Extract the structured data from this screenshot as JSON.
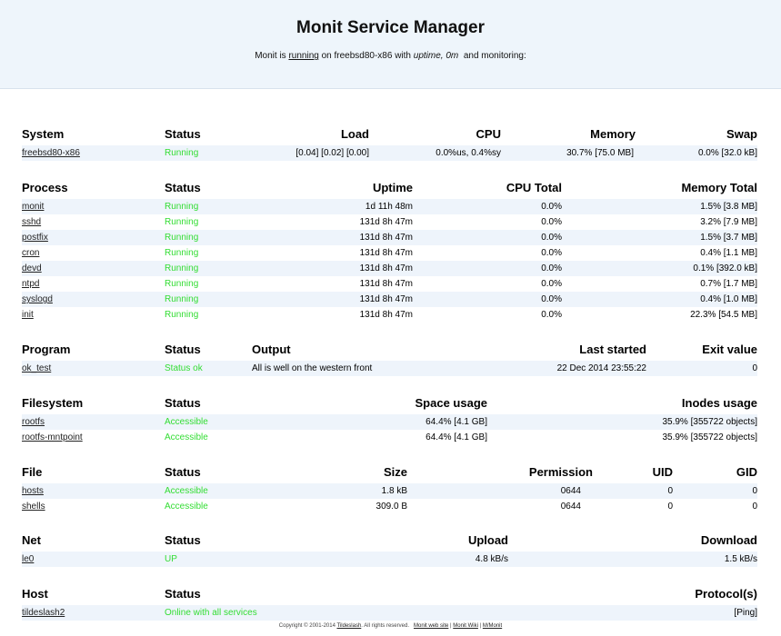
{
  "header": {
    "title": "Monit Service Manager",
    "sub_prefix": "Monit is",
    "sub_running": "running",
    "sub_on": "on freebsd80-x86 with",
    "sub_uptime_label": "uptime,",
    "sub_uptime_value": "0m",
    "sub_suffix": "and monitoring:"
  },
  "system": {
    "headers": [
      "System",
      "Status",
      "Load",
      "CPU",
      "Memory",
      "Swap"
    ],
    "rows": [
      {
        "name": "freebsd80-x86",
        "status": "Running",
        "load": "[0.04] [0.02] [0.00]",
        "cpu": "0.0%us, 0.4%sy",
        "memory": "30.7% [75.0 MB]",
        "swap": "0.0% [32.0 kB]"
      }
    ]
  },
  "process": {
    "headers": [
      "Process",
      "Status",
      "Uptime",
      "CPU Total",
      "Memory Total"
    ],
    "rows": [
      {
        "name": "monit",
        "status": "Running",
        "uptime": "1d 11h 48m",
        "cpu": "0.0%",
        "memory": "1.5% [3.8 MB]"
      },
      {
        "name": "sshd",
        "status": "Running",
        "uptime": "131d 8h 47m",
        "cpu": "0.0%",
        "memory": "3.2% [7.9 MB]"
      },
      {
        "name": "postfix",
        "status": "Running",
        "uptime": "131d 8h 47m",
        "cpu": "0.0%",
        "memory": "1.5% [3.7 MB]"
      },
      {
        "name": "cron",
        "status": "Running",
        "uptime": "131d 8h 47m",
        "cpu": "0.0%",
        "memory": "0.4% [1.1 MB]"
      },
      {
        "name": "devd",
        "status": "Running",
        "uptime": "131d 8h 47m",
        "cpu": "0.0%",
        "memory": "0.1% [392.0 kB]"
      },
      {
        "name": "ntpd",
        "status": "Running",
        "uptime": "131d 8h 47m",
        "cpu": "0.0%",
        "memory": "0.7% [1.7 MB]"
      },
      {
        "name": "syslogd",
        "status": "Running",
        "uptime": "131d 8h 47m",
        "cpu": "0.0%",
        "memory": "0.4% [1.0 MB]"
      },
      {
        "name": "init",
        "status": "Running",
        "uptime": "131d 8h 47m",
        "cpu": "0.0%",
        "memory": "22.3% [54.5 MB]"
      }
    ]
  },
  "program": {
    "headers": [
      "Program",
      "Status",
      "Output",
      "Last started",
      "Exit value"
    ],
    "rows": [
      {
        "name": "ok_test",
        "status": "Status ok",
        "output": "All is well on the western front",
        "last_started": "22 Dec 2014 23:55:22",
        "exit": "0"
      }
    ]
  },
  "filesystem": {
    "headers": [
      "Filesystem",
      "Status",
      "Space usage",
      "Inodes usage"
    ],
    "rows": [
      {
        "name": "rootfs",
        "status": "Accessible",
        "space": "64.4% [4.1 GB]",
        "inodes": "35.9% [355722 objects]"
      },
      {
        "name": "rootfs-mntpoint",
        "status": "Accessible",
        "space": "64.4% [4.1 GB]",
        "inodes": "35.9% [355722 objects]"
      }
    ]
  },
  "file": {
    "headers": [
      "File",
      "Status",
      "Size",
      "Permission",
      "UID",
      "GID"
    ],
    "rows": [
      {
        "name": "hosts",
        "status": "Accessible",
        "size": "1.8 kB",
        "perm": "0644",
        "uid": "0",
        "gid": "0"
      },
      {
        "name": "shells",
        "status": "Accessible",
        "size": "309.0 B",
        "perm": "0644",
        "uid": "0",
        "gid": "0"
      }
    ]
  },
  "net": {
    "headers": [
      "Net",
      "Status",
      "Upload",
      "Download"
    ],
    "rows": [
      {
        "name": "le0",
        "status": "UP",
        "upload": "4.8 kB/s",
        "download": "1.5 kB/s"
      }
    ]
  },
  "host": {
    "headers": [
      "Host",
      "Status",
      "Protocol(s)"
    ],
    "rows": [
      {
        "name": "tildeslash2",
        "status": "Online with all services",
        "protocols": "[Ping]"
      }
    ]
  },
  "footer": {
    "copyright": "Copyright © 2001-2014",
    "company": "Tildeslash",
    "rights": ". All rights reserved.",
    "link1": "Monit web site",
    "link2": "Monit Wiki",
    "link3": "M/Monit",
    "sep": "|"
  },
  "colors": {
    "header_bg": "#eef5fb",
    "row_alt_bg": "#eef4fb",
    "status_ok": "#33dd33"
  }
}
